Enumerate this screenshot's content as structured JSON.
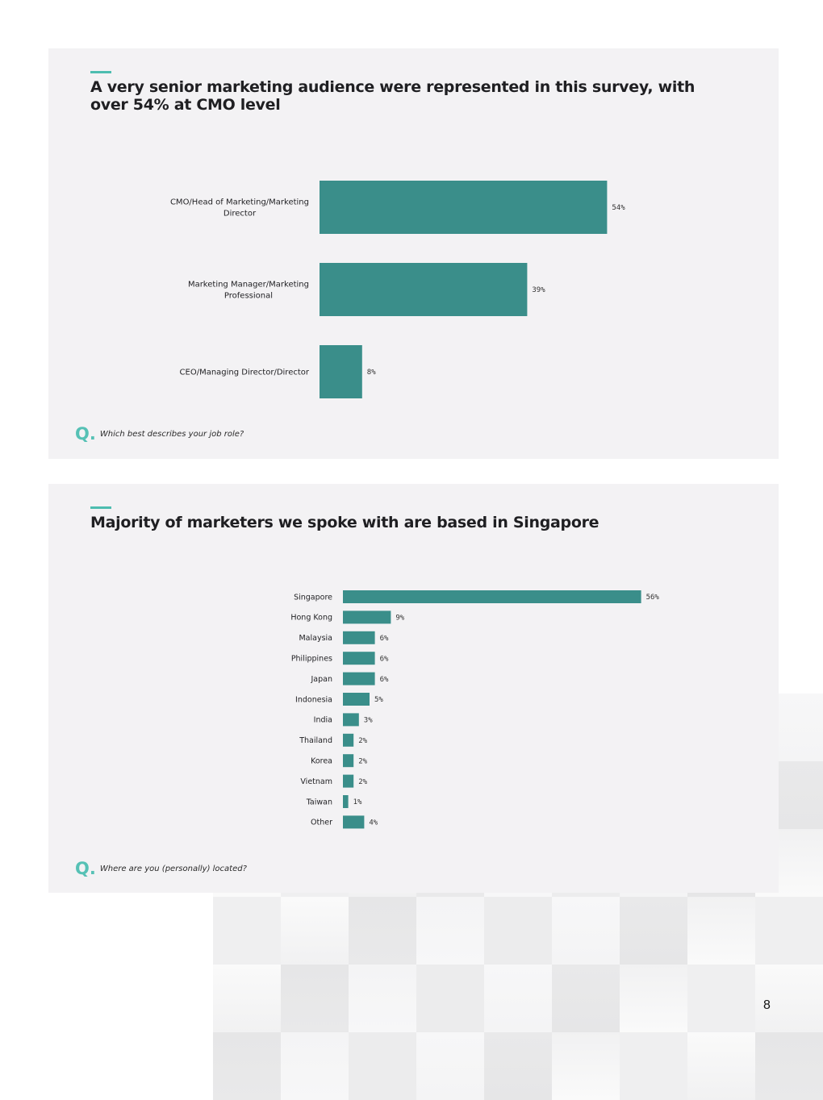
{
  "page": {
    "number": "8"
  },
  "panels": [
    {
      "title": "A very senior marketing audience were represented in this survey, with over 54% at CMO level",
      "question_mark": "Q.",
      "question": "Which best describes your job role?"
    },
    {
      "title": "Majority of marketers we spoke with are based in Singapore",
      "question_mark": "Q.",
      "question": "Where are you (personally) located?"
    }
  ],
  "colors": {
    "bar": "#3a8e8a",
    "accent": "#4dbdb0",
    "panel_bg": "#f3f2f4"
  },
  "chart_data": [
    {
      "type": "bar",
      "orientation": "horizontal",
      "categories": [
        [
          "CMO/Head of Marketing/Marketing",
          "Director"
        ],
        [
          "Marketing Manager/Marketing",
          "Professional"
        ],
        [
          "CEO/Managing Director/Director"
        ]
      ],
      "values": [
        54,
        39,
        8
      ],
      "value_labels": [
        "54%",
        "39%",
        "8%"
      ],
      "grid": false,
      "legend": "none"
    },
    {
      "type": "bar",
      "orientation": "horizontal",
      "categories": [
        "Singapore",
        "Hong Kong",
        "Malaysia",
        "Philippines",
        "Japan",
        "Indonesia",
        "India",
        "Thailand",
        "Korea",
        "Vietnam",
        "Taiwan",
        "Other"
      ],
      "values": [
        56,
        9,
        6,
        6,
        6,
        5,
        3,
        2,
        2,
        2,
        1,
        4
      ],
      "value_labels": [
        "56%",
        "9%",
        "6%",
        "6%",
        "6%",
        "5%",
        "3%",
        "2%",
        "2%",
        "2%",
        "1%",
        "4%"
      ],
      "grid": false,
      "legend": "none"
    }
  ]
}
